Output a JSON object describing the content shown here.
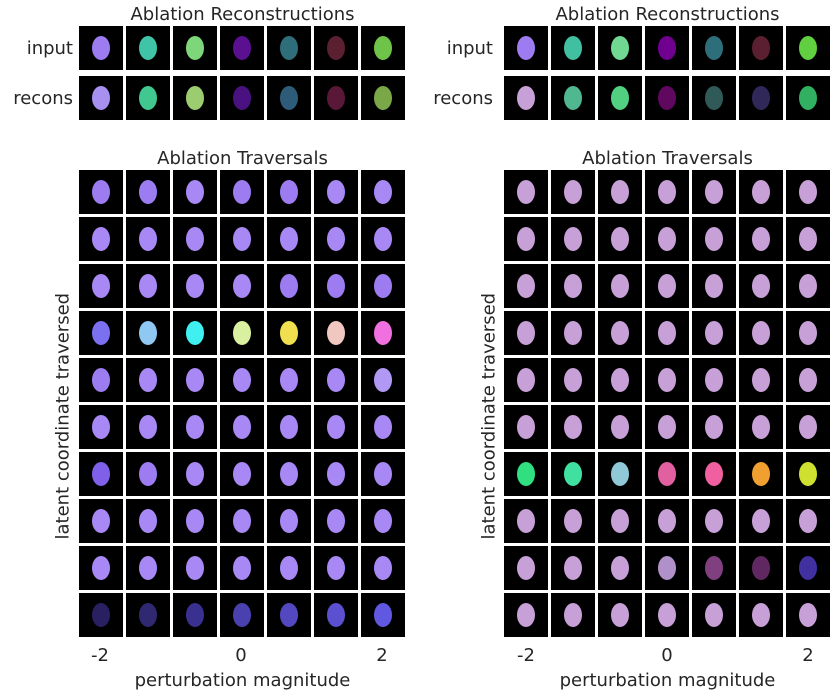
{
  "left_panel": {
    "recon_title": "Ablation Reconstructions",
    "row_labels": [
      "input",
      "recons"
    ],
    "trav_title": "Ablation Traversals",
    "ylabel": "latent coordinate traversed",
    "xlabel": "perturbation magnitude",
    "ticks": [
      "-2",
      "0",
      "2"
    ],
    "input_colors": [
      "#9c7cf0",
      "#3fc4a8",
      "#7ed67a",
      "#5a1090",
      "#2e6e7a",
      "#5a2030",
      "#6ec448"
    ],
    "recons_colors": [
      "#a890f0",
      "#40c890",
      "#9ccc70",
      "#4a1280",
      "#2e5c78",
      "#5a1838",
      "#7aa848"
    ],
    "traversal_rows": [
      [
        "#9c7cf0",
        "#9c7cf0",
        "#a888f4",
        "#9c7cf0",
        "#9c7cf0",
        "#a888f4",
        "#a888f4"
      ],
      [
        "#a888f4",
        "#a888f4",
        "#a888f4",
        "#a888f4",
        "#a888f4",
        "#a888f4",
        "#a888f4"
      ],
      [
        "#a888f4",
        "#a888f4",
        "#a888f4",
        "#a888f4",
        "#9c7cf0",
        "#9c7cf0",
        "#9c7cf0"
      ],
      [
        "#7a70f0",
        "#90c8f4",
        "#40f0f0",
        "#d8f0a0",
        "#f0e050",
        "#f0c8c0",
        "#f070e0"
      ],
      [
        "#9c7cf0",
        "#a888f4",
        "#a888f4",
        "#a888f4",
        "#a888f4",
        "#a888f4",
        "#b098f4"
      ],
      [
        "#a888f4",
        "#a888f4",
        "#a888f4",
        "#a888f4",
        "#a888f4",
        "#a888f4",
        "#a888f4"
      ],
      [
        "#8060e8",
        "#9c7cf0",
        "#a888f4",
        "#a888f4",
        "#a888f4",
        "#a888f4",
        "#a888f4"
      ],
      [
        "#a888f4",
        "#a888f4",
        "#a888f4",
        "#a888f4",
        "#a888f4",
        "#a888f4",
        "#a888f4"
      ],
      [
        "#a888f4",
        "#a888f4",
        "#a888f4",
        "#a888f4",
        "#a888f4",
        "#a888f4",
        "#a888f4"
      ],
      [
        "#282060",
        "#302870",
        "#3a3090",
        "#4a40b0",
        "#5448c0",
        "#5a50d0",
        "#6058e0"
      ]
    ]
  },
  "right_panel": {
    "recon_title": "Ablation Reconstructions",
    "row_labels": [
      "input",
      "recons"
    ],
    "trav_title": "Ablation Traversals",
    "ylabel": "latent coordinate traversed",
    "xlabel": "perturbation magnitude",
    "ticks": [
      "-2",
      "0",
      "2"
    ],
    "input_colors": [
      "#9c7cf0",
      "#40c0a0",
      "#70d890",
      "#700090",
      "#2e6e7a",
      "#5a2030",
      "#60d040"
    ],
    "recons_colors": [
      "#c8a0d8",
      "#50b890",
      "#50d080",
      "#600860",
      "#305a58",
      "#302858",
      "#30b060"
    ],
    "traversal_rows": [
      [
        "#c8a0d8",
        "#c8a0d8",
        "#c8a0d8",
        "#c8a0d8",
        "#c8a0d8",
        "#c8a0d8",
        "#c8a0d8"
      ],
      [
        "#c8a0d8",
        "#c8a0d8",
        "#c8a0d8",
        "#c8a0d8",
        "#c8a0d8",
        "#c8a0d8",
        "#c8a0d8"
      ],
      [
        "#c8a0d8",
        "#c8a0d8",
        "#c8a0d8",
        "#c8a0d8",
        "#c8a0d8",
        "#c8a0d8",
        "#c8a0d8"
      ],
      [
        "#c8a0d8",
        "#c8a0d8",
        "#c8a0d8",
        "#c8a0d8",
        "#c8a0d8",
        "#c8a0d8",
        "#c8a0d8"
      ],
      [
        "#c8a0d8",
        "#c8a0d8",
        "#c8a0d8",
        "#c8a0d8",
        "#c8a0d8",
        "#c8a0d8",
        "#c8a0d8"
      ],
      [
        "#c8a0d8",
        "#c8a0d8",
        "#c8a0d8",
        "#c8a0d8",
        "#c8a0d8",
        "#c8a0d8",
        "#c8a0d8"
      ],
      [
        "#30e080",
        "#40e0a0",
        "#90c8d8",
        "#e060a0",
        "#f060a0",
        "#f0a030",
        "#d0e030"
      ],
      [
        "#c8a0d8",
        "#c8a0d8",
        "#c8a0d8",
        "#c8a0d8",
        "#c8a0d8",
        "#c8a0d8",
        "#c8a0d8"
      ],
      [
        "#c8a0d8",
        "#c8a0d8",
        "#c8a0d8",
        "#b090c8",
        "#804080",
        "#602860",
        "#4030a0"
      ],
      [
        "#c8a0d8",
        "#c8a0d8",
        "#c8a0d8",
        "#c8a0d8",
        "#c8a0d8",
        "#c8a0d8",
        "#c8a0d8"
      ]
    ]
  }
}
